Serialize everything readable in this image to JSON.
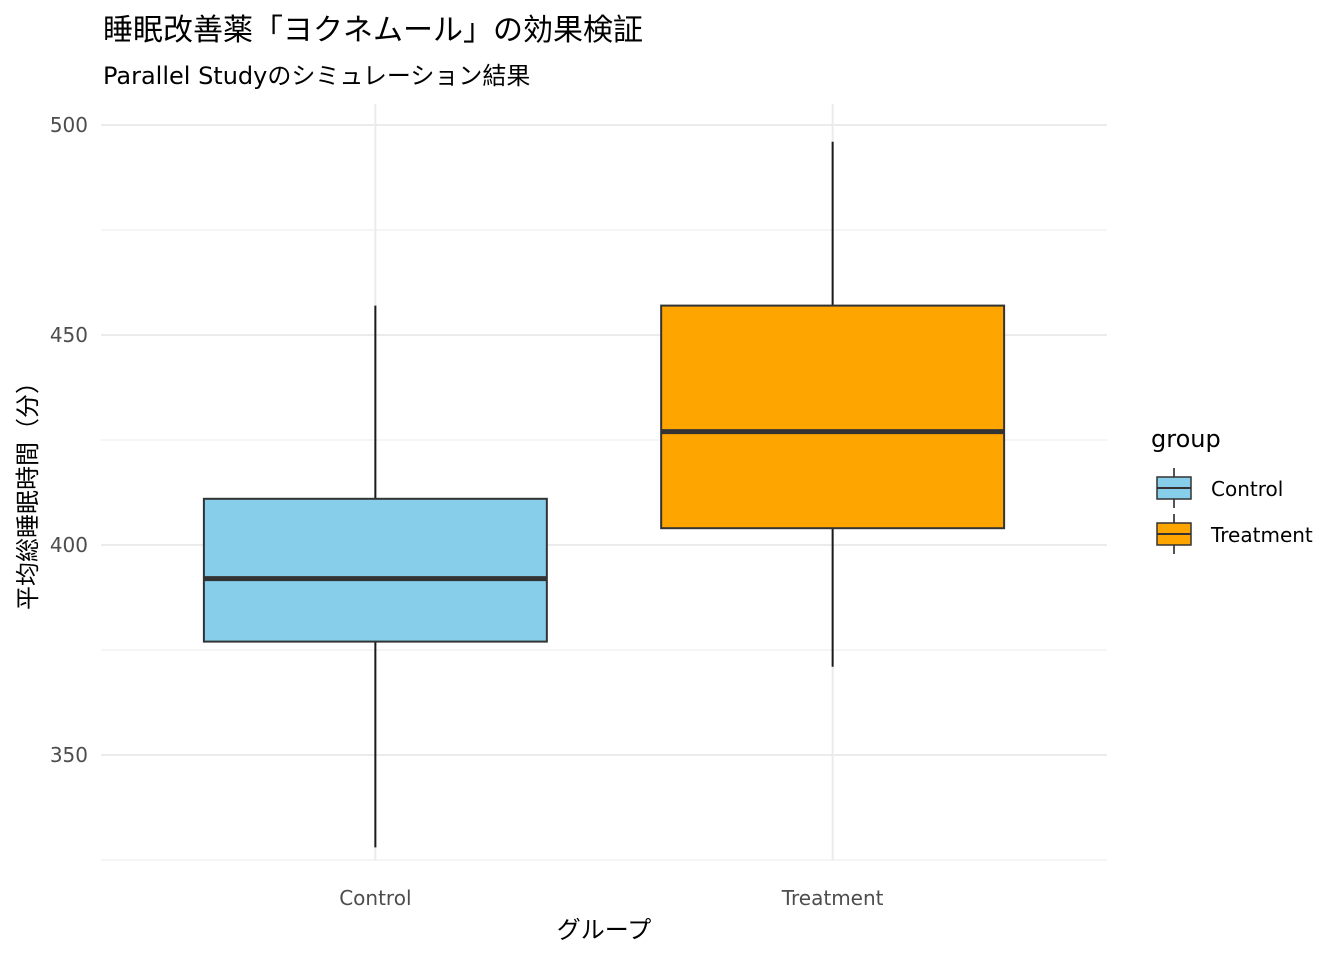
{
  "chart_data": {
    "type": "boxplot",
    "title": "睡眠改善薬「ヨクネムール」の効果検証",
    "subtitle": "Parallel Studyのシミュレーション結果",
    "xlabel": "グループ",
    "ylabel": "平均総睡眠時間（分）",
    "ylim": [
      325,
      505
    ],
    "y_ticks": [
      350,
      400,
      450,
      500
    ],
    "grid": true,
    "legend": {
      "title": "group",
      "placement": "right",
      "entries": [
        {
          "label": "Control",
          "color": "#87CEEB"
        },
        {
          "label": "Treatment",
          "color": "#FFA500"
        }
      ]
    },
    "categories": [
      "Control",
      "Treatment"
    ],
    "boxes": [
      {
        "name": "Control",
        "color": "#87CEEB",
        "whisker_low": 328,
        "q1": 377,
        "median": 392,
        "q3": 411,
        "whisker_high": 457
      },
      {
        "name": "Treatment",
        "color": "#FFA500",
        "whisker_low": 371,
        "q1": 404,
        "median": 427,
        "q3": 457,
        "whisker_high": 496
      }
    ]
  }
}
